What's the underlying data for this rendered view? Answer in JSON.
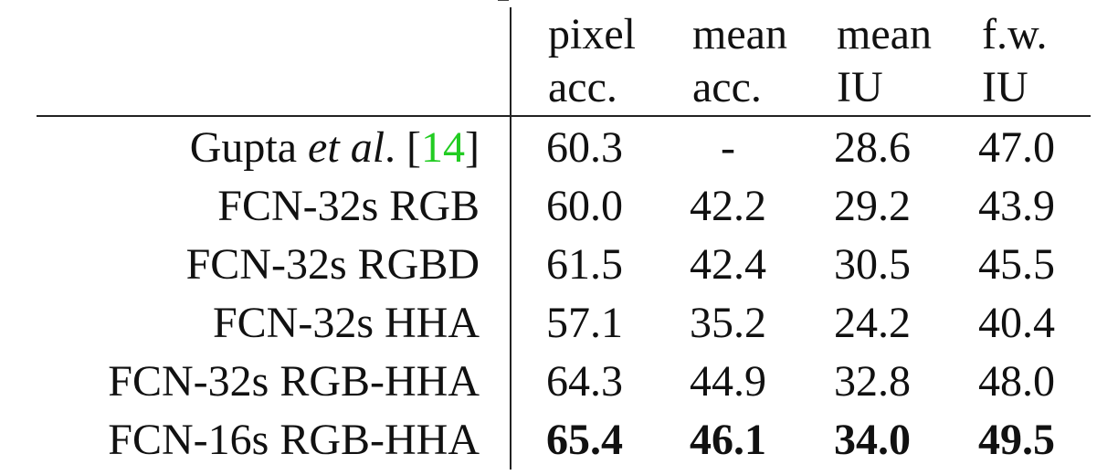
{
  "table": {
    "headers": [
      {
        "line1": "pixel",
        "line2": "acc."
      },
      {
        "line1": "mean",
        "line2": "acc."
      },
      {
        "line1": "mean",
        "line2": "IU"
      },
      {
        "line1": "f.w.",
        "line2": "IU"
      }
    ],
    "rows": [
      {
        "label_pre": "Gupta ",
        "label_em": "et al",
        "label_post": ". [",
        "label_ref": "14",
        "label_end": "]",
        "values": [
          "60.3",
          "-",
          "28.6",
          "47.0"
        ],
        "bold": false
      },
      {
        "label": "FCN-32s RGB",
        "values": [
          "60.0",
          "42.2",
          "29.2",
          "43.9"
        ],
        "bold": false
      },
      {
        "label": "FCN-32s RGBD",
        "values": [
          "61.5",
          "42.4",
          "30.5",
          "45.5"
        ],
        "bold": false
      },
      {
        "label": "FCN-32s HHA",
        "values": [
          "57.1",
          "35.2",
          "24.2",
          "40.4"
        ],
        "bold": false
      },
      {
        "label": "FCN-32s RGB-HHA",
        "values": [
          "64.3",
          "44.9",
          "32.8",
          "48.0"
        ],
        "bold": false
      },
      {
        "label": "FCN-16s RGB-HHA",
        "values": [
          "65.4",
          "46.1",
          "34.0",
          "49.5"
        ],
        "bold": true
      }
    ],
    "ref_color": "#22cc22"
  }
}
